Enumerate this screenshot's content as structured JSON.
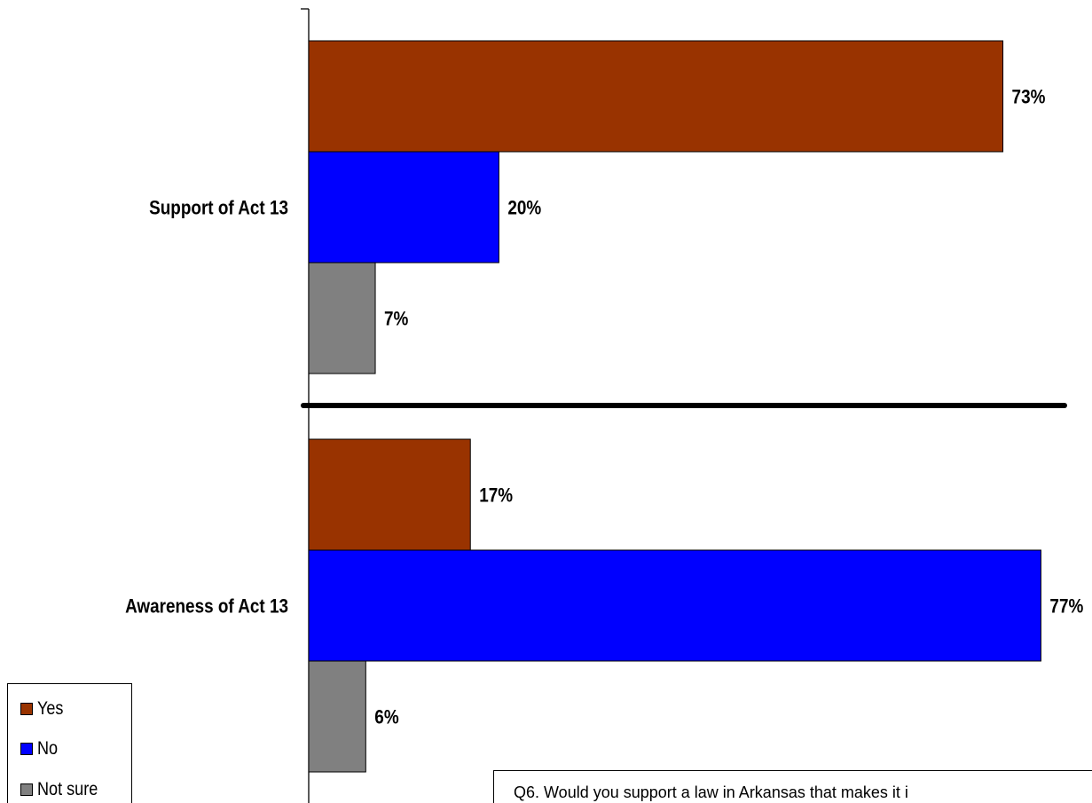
{
  "chart_data": {
    "type": "bar",
    "orientation": "horizontal",
    "categories": [
      "Support of Act 13",
      "Awareness of Act 13"
    ],
    "series": [
      {
        "name": "Yes",
        "values": [
          73,
          17
        ],
        "labels": [
          "73%",
          "17%"
        ]
      },
      {
        "name": "No",
        "values": [
          20,
          77
        ],
        "labels": [
          "20%",
          "77%"
        ]
      },
      {
        "name": "Not sure",
        "values": [
          7,
          6
        ],
        "labels": [
          "7%",
          "6%"
        ]
      }
    ],
    "xlim": [
      0,
      100
    ],
    "grid": false,
    "legend": "bottom-left"
  },
  "colors": {
    "Yes": "#993300",
    "No": "#0000FF",
    "Not sure": "#808080"
  },
  "note": "Q6. Would you support a law in Arkansas that makes it i"
}
